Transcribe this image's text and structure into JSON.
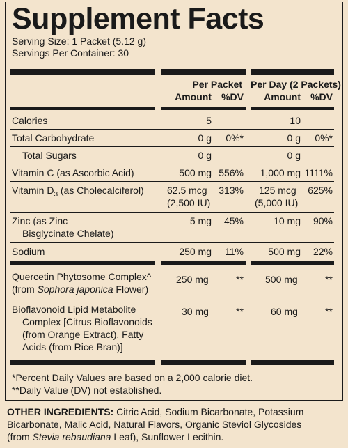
{
  "title": "Supplement Facts",
  "serving_size": "Serving Size: 1 Packet (5.12 g)",
  "servings_per_container": "Servings Per Container: 30",
  "columns": {
    "per_packet": "Per Packet",
    "per_day": "Per Day (2 Packets)",
    "amount": "Amount",
    "dv": "%DV"
  },
  "rows": [
    {
      "name": "Calories",
      "a1": "5",
      "d1": "",
      "a2": "10",
      "d2": ""
    },
    {
      "name": "Total Carbohydrate",
      "a1": "0 g",
      "d1": "0%*",
      "a2": "0 g",
      "d2": "0%*"
    },
    {
      "name": "Total Sugars",
      "a1": "0 g",
      "d1": "",
      "a2": "0 g",
      "d2": ""
    },
    {
      "name": "Vitamin C (as Ascorbic Acid)",
      "a1": "500 mg",
      "d1": "556%",
      "a2": "1,000 mg",
      "d2": "1111%"
    },
    {
      "name_pre": "Vitamin D",
      "name_sub": "3",
      "name_post": " (as Cholecalciferol)",
      "a1": "62.5 mcg",
      "a1b": "(2,500 IU)",
      "d1": "313%",
      "a2": "125 mcg",
      "a2b": "(5,000 IU)",
      "d2": "625%"
    },
    {
      "name": "Zinc (as Zinc",
      "name2": "Bisglycinate Chelate)",
      "a1": "5 mg",
      "d1": "45%",
      "a2": "10 mg",
      "d2": "90%"
    },
    {
      "name": "Sodium",
      "a1": "250 mg",
      "d1": "11%",
      "a2": "500 mg",
      "d2": "22%"
    },
    {
      "name": "Quercetin Phytosome Complex^",
      "name2_pre": "(from ",
      "name2_it": "Sophora japonica",
      "name2_post": " Flower)",
      "a1": "250 mg",
      "d1": "**",
      "a2": "500 mg",
      "d2": "**"
    },
    {
      "name": "Bioflavonoid Lipid Metabolite",
      "name2": "Complex [Citrus Bioflavonoids",
      "name3": "(from Orange Extract), Fatty",
      "name4": "Acids (from Rice Bran)]",
      "a1": "30 mg",
      "d1": "**",
      "a2": "60 mg",
      "d2": "**"
    }
  ],
  "footnotes": [
    "*Percent Daily Values are based on a 2,000 calorie diet.",
    "**Daily Value (DV) not established."
  ],
  "other_ingredients": {
    "label": "OTHER INGREDIENTS:",
    "text1": " Citric Acid, Sodium Bicarbonate, Potassium",
    "text2": "Bicarbonate, Malic Acid, Natural Flavors, Organic Steviol Glycosides",
    "text3_pre": "(from ",
    "text3_it": "Stevia rebaudiana",
    "text3_post": " Leaf), Sunflower Lecithin."
  }
}
